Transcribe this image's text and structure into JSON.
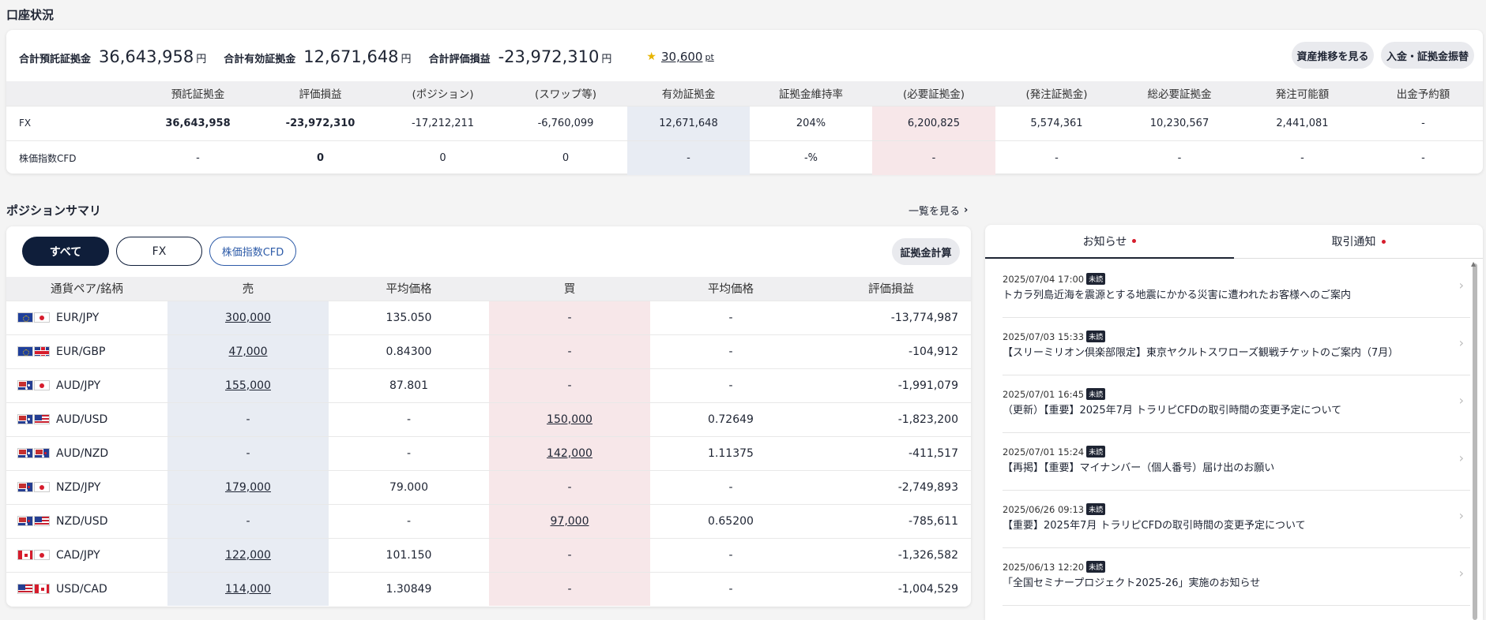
{
  "account": {
    "title": "口座状況",
    "summary": [
      {
        "label": "合計預託証拠金",
        "value": "36,643,958",
        "unit": "円"
      },
      {
        "label": "合計有効証拠金",
        "value": "12,671,648",
        "unit": "円"
      },
      {
        "label": "合計評価損益",
        "value": "-23,972,310",
        "unit": "円"
      }
    ],
    "points": {
      "value": "30,600",
      "unit": "pt"
    },
    "buttons": {
      "asset_history": "資産推移を見る",
      "deposit_transfer": "入金・証拠金振替"
    },
    "table": {
      "headers": [
        "",
        "預託証拠金",
        "評価損益",
        "(ポジション)",
        "(スワップ等)",
        "有効証拠金",
        "証拠金維持率",
        "(必要証拠金)",
        "(発注証拠金)",
        "総必要証拠金",
        "発注可能額",
        "出金予約額"
      ],
      "rows": [
        {
          "label": "FX",
          "cells": [
            "36,643,958",
            "-23,972,310",
            "-17,212,211",
            "-6,760,099",
            "12,671,648",
            "204%",
            "6,200,825",
            "5,574,361",
            "10,230,567",
            "2,441,081",
            "-"
          ]
        },
        {
          "label": "株価指数CFD",
          "cells": [
            "-",
            "0",
            "0",
            "0",
            "-",
            "-%",
            "-",
            "-",
            "-",
            "-",
            "-"
          ]
        }
      ]
    }
  },
  "positions": {
    "title": "ポジションサマリ",
    "see_all": "一覧を見る",
    "tabs": [
      "すべて",
      "FX",
      "株価指数CFD"
    ],
    "margin_calc": "証拠金計算",
    "headers": [
      "通貨ペア/銘柄",
      "売",
      "平均価格",
      "買",
      "平均価格",
      "評価損益"
    ],
    "rows": [
      {
        "flags": [
          "eu",
          "jp"
        ],
        "pair": "EUR/JPY",
        "sell": "300,000",
        "sell_avg": "135.050",
        "buy": "-",
        "buy_avg": "-",
        "pl": "-13,774,987"
      },
      {
        "flags": [
          "eu",
          "gb"
        ],
        "pair": "EUR/GBP",
        "sell": "47,000",
        "sell_avg": "0.84300",
        "buy": "-",
        "buy_avg": "-",
        "pl": "-104,912"
      },
      {
        "flags": [
          "au",
          "jp"
        ],
        "pair": "AUD/JPY",
        "sell": "155,000",
        "sell_avg": "87.801",
        "buy": "-",
        "buy_avg": "-",
        "pl": "-1,991,079"
      },
      {
        "flags": [
          "au",
          "us"
        ],
        "pair": "AUD/USD",
        "sell": "-",
        "sell_avg": "-",
        "buy": "150,000",
        "buy_avg": "0.72649",
        "pl": "-1,823,200"
      },
      {
        "flags": [
          "au",
          "nz"
        ],
        "pair": "AUD/NZD",
        "sell": "-",
        "sell_avg": "-",
        "buy": "142,000",
        "buy_avg": "1.11375",
        "pl": "-411,517"
      },
      {
        "flags": [
          "nz",
          "jp"
        ],
        "pair": "NZD/JPY",
        "sell": "179,000",
        "sell_avg": "79.000",
        "buy": "-",
        "buy_avg": "-",
        "pl": "-2,749,893"
      },
      {
        "flags": [
          "nz",
          "us"
        ],
        "pair": "NZD/USD",
        "sell": "-",
        "sell_avg": "-",
        "buy": "97,000",
        "buy_avg": "0.65200",
        "pl": "-785,611"
      },
      {
        "flags": [
          "ca",
          "jp"
        ],
        "pair": "CAD/JPY",
        "sell": "122,000",
        "sell_avg": "101.150",
        "buy": "-",
        "buy_avg": "-",
        "pl": "-1,326,582"
      },
      {
        "flags": [
          "us",
          "ca"
        ],
        "pair": "USD/CAD",
        "sell": "114,000",
        "sell_avg": "1.30849",
        "buy": "-",
        "buy_avg": "-",
        "pl": "-1,004,529"
      }
    ]
  },
  "notices": {
    "tabs": [
      "お知らせ",
      "取引通知"
    ],
    "unread_label": "未読",
    "items": [
      {
        "date": "2025/07/04 17:00",
        "title": "トカラ列島近海を震源とする地震にかかる災害に遭われたお客様へのご案内"
      },
      {
        "date": "2025/07/03 15:33",
        "title": "【スリーミリオン倶楽部限定】東京ヤクルトスワローズ観戦チケットのご案内（7月）"
      },
      {
        "date": "2025/07/01 16:45",
        "title": "（更新）【重要】2025年7月 トラリピCFDの取引時間の変更予定について"
      },
      {
        "date": "2025/07/01 15:24",
        "title": "【再掲】【重要】マイナンバー（個人番号）届け出のお願い"
      },
      {
        "date": "2025/06/26 09:13",
        "title": "【重要】2025年7月 トラリピCFDの取引時間の変更予定について"
      },
      {
        "date": "2025/06/13 12:20",
        "title": "「全国セミナープロジェクト2025-26」実施のお知らせ"
      }
    ]
  }
}
